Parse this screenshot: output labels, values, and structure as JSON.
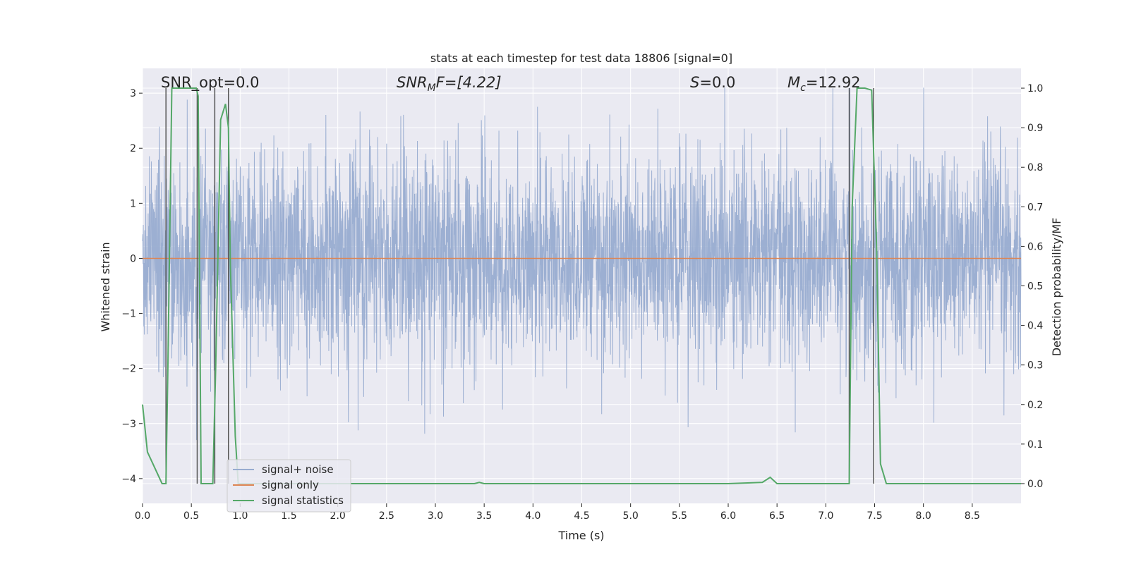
{
  "chart_data": {
    "type": "line",
    "title": "stats at each timestep for test data 18806 [signal=0]",
    "xlabel": "Time (s)",
    "ylabel": "Whitened strain",
    "y2label": "Detection probability/MF",
    "xlim": [
      0.0,
      9.0
    ],
    "ylim": [
      -4.45,
      3.45
    ],
    "y2lim": [
      -0.05,
      1.05
    ],
    "x_ticks": [
      "0.0",
      "0.5",
      "1.0",
      "1.5",
      "2.0",
      "2.5",
      "3.0",
      "3.5",
      "4.0",
      "4.5",
      "5.0",
      "5.5",
      "6.0",
      "6.5",
      "7.0",
      "7.5",
      "8.0",
      "8.5"
    ],
    "y_ticks": [
      "3",
      "2",
      "1",
      "0",
      "−1",
      "−2",
      "−3",
      "−4"
    ],
    "y2_ticks": [
      "1.0",
      "0.9",
      "0.8",
      "0.7",
      "0.6",
      "0.5",
      "0.4",
      "0.3",
      "0.2",
      "0.1",
      "0.0"
    ],
    "annotations": {
      "snr_opt": "SNR_opt=0.0",
      "snr_mf_main": "SNR",
      "snr_mf_sub": "M",
      "snr_mf_rest": "F=[4.22]",
      "s_var": "S",
      "s_rest": "=0.0",
      "mc_main": "M",
      "mc_sub": "c",
      "mc_rest": "=12.92"
    },
    "series": [
      {
        "name": "signal+ noise",
        "color": "#98acd0",
        "kind": "noise",
        "envelope": {
          "std": 0.95,
          "min": -3.3,
          "max": 3.1
        }
      },
      {
        "name": "signal only",
        "color": "#dd8452",
        "kind": "constant",
        "value": 0.0
      },
      {
        "name": "signal statistics",
        "color": "#55a868",
        "axis": "right",
        "x": [
          0.0,
          0.05,
          0.2,
          0.24,
          0.26,
          0.3,
          0.35,
          0.5,
          0.55,
          0.57,
          0.6,
          0.65,
          0.72,
          0.75,
          0.8,
          0.85,
          0.88,
          0.9,
          0.95,
          0.98,
          1.0,
          1.1,
          1.5,
          2.0,
          3.0,
          3.4,
          3.45,
          3.5,
          4.0,
          5.0,
          6.0,
          6.35,
          6.43,
          6.5,
          6.6,
          7.0,
          7.24,
          7.27,
          7.32,
          7.4,
          7.47,
          7.52,
          7.56,
          7.62,
          8.0,
          8.5,
          9.0
        ],
        "y": [
          0.2,
          0.08,
          0.0,
          0.0,
          0.3,
          1.0,
          1.0,
          1.0,
          1.0,
          0.98,
          0.0,
          0.0,
          0.0,
          0.3,
          0.92,
          0.96,
          0.9,
          0.55,
          0.12,
          0.0,
          0.0,
          0.0,
          0.0,
          0.0,
          0.0,
          0.0,
          0.003,
          0.0,
          0.0,
          0.0,
          0.0,
          0.003,
          0.016,
          0.0,
          0.0,
          0.0,
          0.0,
          0.7,
          1.0,
          1.0,
          0.995,
          0.6,
          0.05,
          0.0,
          0.0,
          0.0,
          0.0
        ]
      }
    ],
    "vlines": [
      0.24,
      0.56,
      0.74,
      0.88,
      7.24,
      7.49
    ],
    "vline_color": "#555555",
    "legend_position": "lower-left"
  }
}
